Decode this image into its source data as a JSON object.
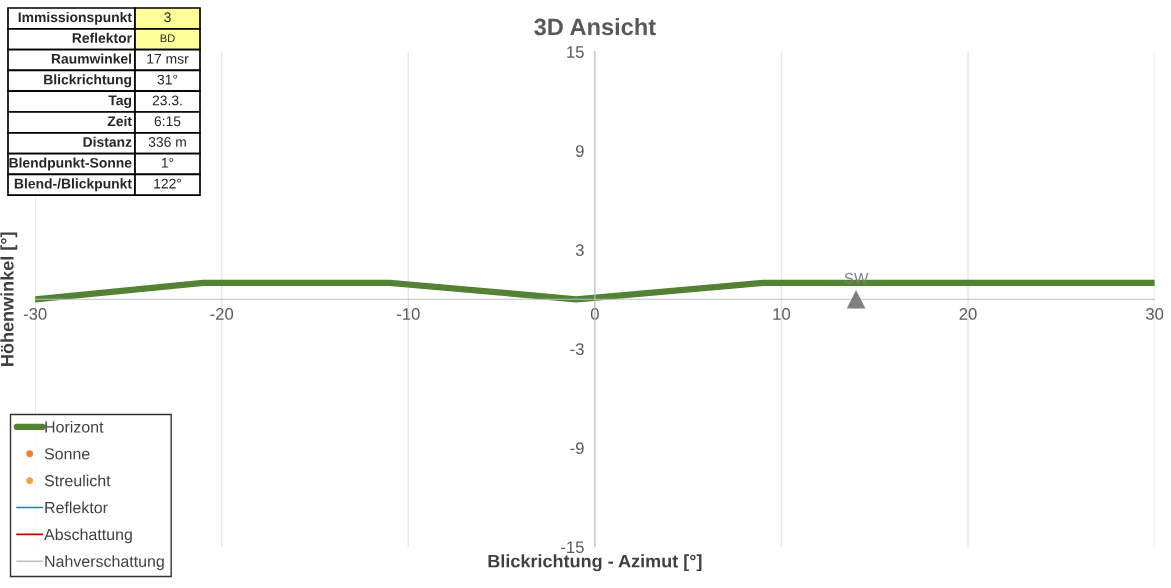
{
  "chart_data": {
    "type": "line",
    "title": "3D Ansicht",
    "xlabel": "Blickrichtung - Azimut [°]",
    "ylabel": "Höhenwinkel [°]",
    "annotations": [
      "Immissionspunkt",
      "3",
      "Reflektor",
      "BD",
      "Raumwinkel",
      "17 msr",
      "Blickrichtung",
      "31°",
      "Tag",
      "23.3.",
      "Zeit",
      "6:15",
      "Distanz",
      "336 m",
      "Blendpunkt-Sonne",
      "1°",
      "Blend-/Blickpunkt",
      "122°"
    ],
    "series": [
      {
        "name": "Horizont",
        "color": "#548235",
        "x": [
          -30,
          -21,
          -11,
          -1,
          9,
          30
        ],
        "values": [
          0,
          1,
          1,
          0,
          1,
          1
        ]
      },
      {
        "name": "Sonne",
        "type": "scatter",
        "color": "#ed7d31"
      },
      {
        "name": "Streulicht",
        "type": "scatter",
        "color": "#f4a041"
      },
      {
        "name": "Reflektor",
        "color": "#2e75b6"
      },
      {
        "name": "Abschattung",
        "color": "#c00000"
      },
      {
        "name": "Nahverschattung",
        "color": "#bfbfbf"
      },
      {
        "name": "SW",
        "type": "scatter",
        "marker": "triangle",
        "color": "#808080",
        "x": [
          14
        ],
        "values": [
          0
        ]
      }
    ],
    "xlim": [
      -30,
      30
    ],
    "xticks": [
      -30,
      -20,
      -10,
      0,
      10,
      20,
      30
    ],
    "ylim": [
      -15,
      15
    ],
    "yticks": [
      -15,
      -9,
      -3,
      3,
      9,
      15
    ],
    "grid": "x",
    "legend": "bottom left"
  }
}
